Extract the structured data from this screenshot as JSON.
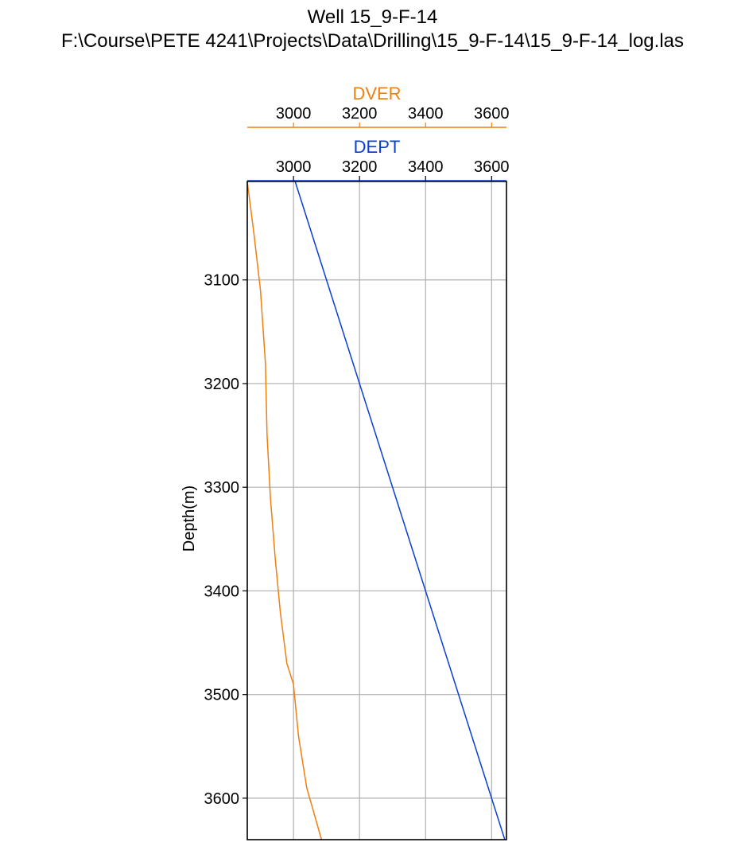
{
  "title": "Well 15_9-F-14",
  "subtitle": "F:\\Course\\PETE 4241\\Projects\\Data\\Drilling\\15_9-F-14\\15_9-F-14_log.las",
  "colors": {
    "dver": "#f07f0e",
    "dept": "#0b3fd4",
    "grid": "#b0b0b0",
    "frame": "#000000"
  },
  "chart_data": {
    "type": "line",
    "title": "Well 15_9-F-14",
    "subtitle": "F:\\Course\\PETE 4241\\Projects\\Data\\Drilling\\15_9-F-14\\15_9-F-14_log.las",
    "ylabel": "Depth(m)",
    "ylim": [
      3640,
      3005
    ],
    "y_inverted": true,
    "y_ticks": [
      3100,
      3200,
      3300,
      3400,
      3500,
      3600
    ],
    "grid": true,
    "x_axes": [
      {
        "label": "DVER",
        "color": "#f07f0e",
        "xlim": [
          2860,
          3645
        ],
        "ticks": [
          3000,
          3200,
          3400,
          3600
        ]
      },
      {
        "label": "DEPT",
        "color": "#0b3fd4",
        "xlim": [
          2860,
          3645
        ],
        "ticks": [
          3000,
          3200,
          3400,
          3600
        ]
      }
    ],
    "series": [
      {
        "name": "DVER",
        "axis": 0,
        "color": "#f07f0e",
        "points": [
          [
            2860,
            3005
          ],
          [
            2880,
            3055
          ],
          [
            2900,
            3110
          ],
          [
            2915,
            3180
          ],
          [
            2920,
            3250
          ],
          [
            2930,
            3310
          ],
          [
            2945,
            3370
          ],
          [
            2960,
            3420
          ],
          [
            2980,
            3470
          ],
          [
            3000,
            3490
          ],
          [
            3015,
            3540
          ],
          [
            3040,
            3590
          ],
          [
            3085,
            3640
          ]
        ]
      },
      {
        "name": "DEPT",
        "axis": 1,
        "color": "#0b3fd4",
        "points": [
          [
            3005,
            3005
          ],
          [
            3640,
            3640
          ]
        ]
      }
    ]
  }
}
